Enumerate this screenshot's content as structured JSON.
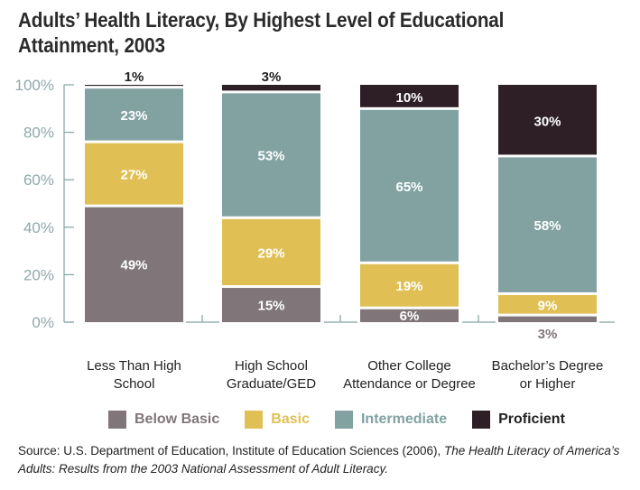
{
  "chart_data": {
    "type": "stacked-bar",
    "title": "Adults’ Health Literacy, By Highest Level of Educational Attainment, 2003",
    "categories": [
      [
        "Less Than High",
        "School"
      ],
      [
        "High School",
        "Graduate/GED"
      ],
      [
        "Other College",
        "Attendance or Degree"
      ],
      [
        "Bachelor’s Degree",
        "or Higher"
      ]
    ],
    "series": [
      {
        "name": "Below Basic",
        "color": "#80767a",
        "values": [
          49,
          15,
          6,
          3
        ]
      },
      {
        "name": "Basic",
        "color": "#e0c055",
        "values": [
          27,
          29,
          19,
          9
        ]
      },
      {
        "name": "Intermediate",
        "color": "#82a2a2",
        "values": [
          23,
          53,
          65,
          58
        ]
      },
      {
        "name": "Proficient",
        "color": "#2e1f26",
        "values": [
          1,
          3,
          10,
          30
        ]
      }
    ],
    "data_labels": [
      [
        "49%",
        "27%",
        "23%",
        "1%"
      ],
      [
        "15%",
        "29%",
        "53%",
        "3%"
      ],
      [
        "6%",
        "19%",
        "65%",
        "10%"
      ],
      [
        "3%",
        "9%",
        "58%",
        "30%"
      ]
    ],
    "yticks": [
      "0%",
      "20%",
      "40%",
      "60%",
      "80%",
      "100%"
    ],
    "ylim": [
      0,
      100
    ],
    "grid": false,
    "legend_position": "bottom"
  },
  "source": {
    "prefix": "Source: U.S. Department of Education, Institute of Education Sciences (2006), ",
    "italic": "The Health Literacy of America’s Adults: Results from the 2003 National Assessment of Adult Literacy."
  }
}
